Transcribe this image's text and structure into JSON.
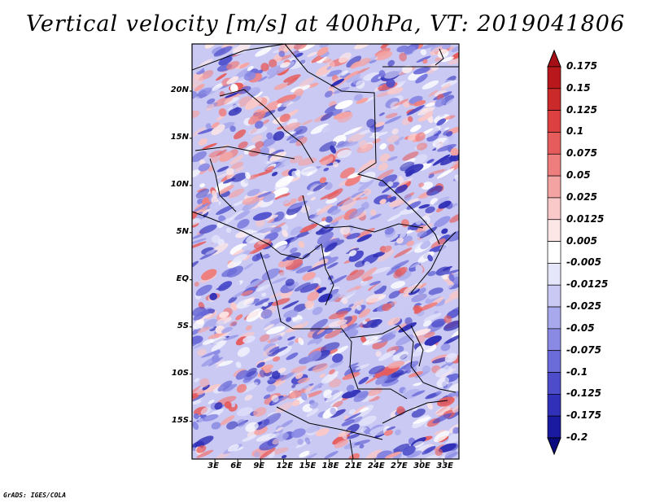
{
  "title": "Vertical velocity [m/s] at 400hPa, VT: 2019041806",
  "credit": "GrADS: IGES/COLA",
  "map": {
    "lat_labels": [
      "20N",
      "15N",
      "10N",
      "5N",
      "EQ",
      "5S",
      "10S",
      "15S"
    ],
    "lat_values": [
      20,
      15,
      10,
      5,
      0,
      -5,
      -10,
      -15
    ],
    "lon_labels": [
      "3E",
      "6E",
      "9E",
      "12E",
      "15E",
      "18E",
      "21E",
      "24E",
      "27E",
      "30E",
      "33E"
    ],
    "lon_values": [
      3,
      6,
      9,
      12,
      15,
      18,
      21,
      24,
      27,
      30,
      33
    ],
    "lon_range": [
      0,
      35
    ],
    "lat_range": [
      -19,
      25
    ]
  },
  "colorbar": {
    "labels": [
      "0.175",
      "0.15",
      "0.125",
      "0.1",
      "0.075",
      "0.05",
      "0.025",
      "0.0125",
      "0.005",
      "-0.005",
      "-0.0125",
      "-0.025",
      "-0.05",
      "-0.075",
      "-0.1",
      "-0.125",
      "-0.175",
      "-0.2"
    ],
    "colors": [
      "#a50f15",
      "#b8181c",
      "#cb2a2a",
      "#dc4040",
      "#e65c5c",
      "#ee7e7e",
      "#f4a3a3",
      "#f9c8c8",
      "#fde6e6",
      "#ffffff",
      "#e6e6fb",
      "#c9c9f4",
      "#a8a8ec",
      "#8a8ae4",
      "#6b6bd9",
      "#4d4dcb",
      "#3030b8",
      "#1a1aa0",
      "#0a0a7e"
    ]
  }
}
